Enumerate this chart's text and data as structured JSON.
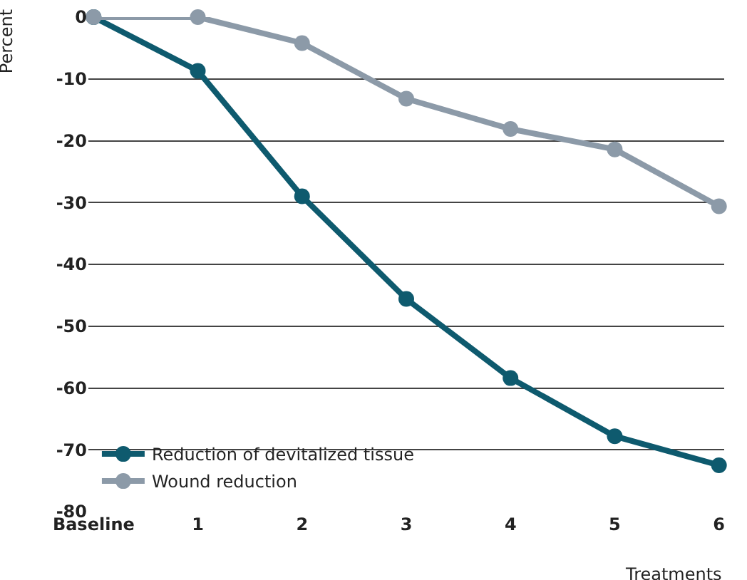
{
  "chart_data": {
    "type": "line",
    "xlabel": "Treatments",
    "ylabel": "Percent",
    "categories": [
      "Baseline",
      "1",
      "2",
      "3",
      "4",
      "5",
      "6"
    ],
    "series": [
      {
        "name": "Reduction of devitalized tissue",
        "color": "#0e5a6e",
        "values": [
          0,
          -8.7,
          -29,
          -45.6,
          -58.4,
          -67.8,
          -72.5
        ]
      },
      {
        "name": "Wound reduction",
        "color": "#8c9aa8",
        "values": [
          0,
          0,
          -4.2,
          -13.2,
          -18.1,
          -21.4,
          -30.6
        ]
      }
    ],
    "ylim": [
      -80,
      0
    ],
    "yticks": [
      0,
      -10,
      -20,
      -30,
      -40,
      -50,
      -60,
      -70,
      -80
    ],
    "grid": "y",
    "legend": "bottom left",
    "marker": "circle",
    "line_style": "solid"
  }
}
